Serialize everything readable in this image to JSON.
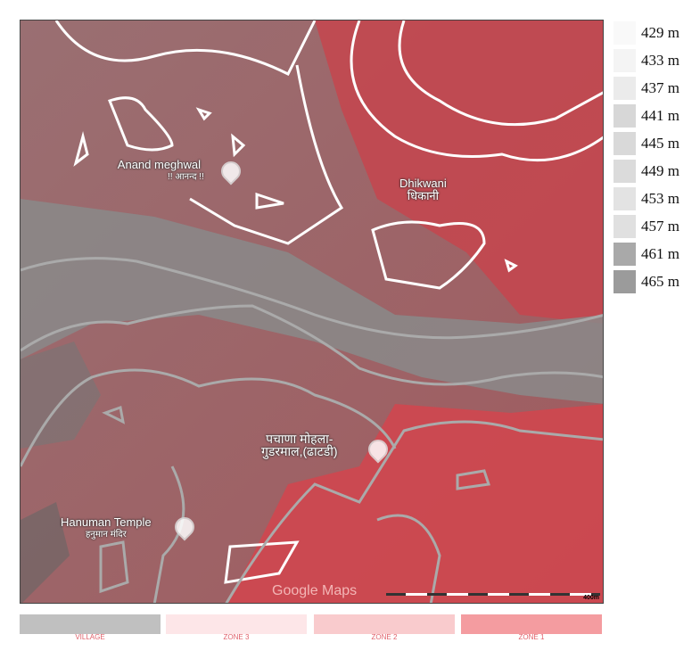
{
  "map": {
    "places": [
      {
        "name": "Anand meghwal",
        "subtitle": "!! आनन्द !!",
        "icon": "om-pin-icon"
      },
      {
        "name": "Dhikwani",
        "subtitle": "धिकानी"
      },
      {
        "name": "पचाणा मोहला-",
        "subtitle": "गुडरमाल,(ढाटडी)",
        "icon": "pin-icon"
      },
      {
        "name": "Hanuman Temple",
        "subtitle": "हनुमान मंदिर",
        "icon": "om-pin-icon"
      }
    ],
    "attribution": "Google Maps",
    "scale_label": "400m"
  },
  "elevation_legend": [
    {
      "label": "429 m",
      "color": "#f9f9f9"
    },
    {
      "label": "433 m",
      "color": "#f4f4f4"
    },
    {
      "label": "437 m",
      "color": "#ebebeb"
    },
    {
      "label": "441 m",
      "color": "#d7d7d7"
    },
    {
      "label": "445 m",
      "color": "#d9d9d9"
    },
    {
      "label": "449 m",
      "color": "#dbdbdb"
    },
    {
      "label": "453 m",
      "color": "#e3e3e3"
    },
    {
      "label": "457 m",
      "color": "#e0e0e0"
    },
    {
      "label": "461 m",
      "color": "#a9a9a9"
    },
    {
      "label": "465 m",
      "color": "#9b9b9b"
    }
  ],
  "zones": [
    {
      "label": "VILLAGE",
      "color": "#c0c0c0"
    },
    {
      "label": "ZONE 3",
      "color": "#fde6e8"
    },
    {
      "label": "ZONE 2",
      "color": "#f9cbcd"
    },
    {
      "label": "ZONE 1",
      "color": "#f49ca0"
    }
  ]
}
